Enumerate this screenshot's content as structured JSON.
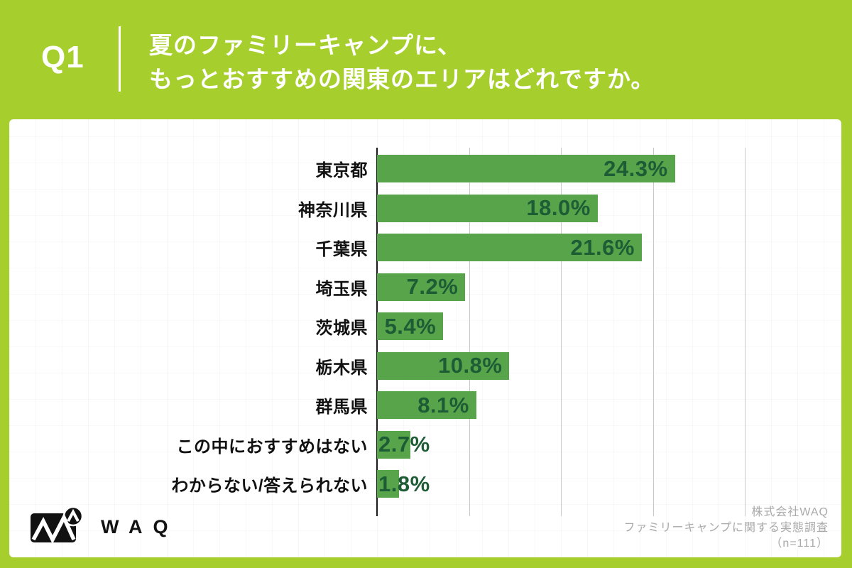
{
  "header": {
    "q_label": "Q1",
    "title_lines": [
      "夏のファミリーキャンプに、",
      "もっとおすすめの関東のエリアはどれですか。"
    ]
  },
  "chart_data": {
    "type": "bar",
    "orientation": "horizontal",
    "title": "夏のファミリーキャンプに、もっとおすすめの関東のエリアはどれですか。",
    "categories": [
      "東京都",
      "神奈川県",
      "千葉県",
      "埼玉県",
      "茨城県",
      "栃木県",
      "群馬県",
      "この中におすすめはない",
      "わからない/答えられない"
    ],
    "values": [
      24.3,
      18.0,
      21.6,
      7.2,
      5.4,
      10.8,
      8.1,
      2.7,
      1.8
    ],
    "value_labels": [
      "24.3%",
      "18.0%",
      "21.6%",
      "7.2%",
      "5.4%",
      "10.8%",
      "8.1%",
      "2.7%",
      "1.8%"
    ],
    "unit": "%",
    "xlim": [
      0,
      30
    ],
    "gridlines_pct": [
      7.5,
      15,
      22.5,
      30
    ],
    "grid": "vertical-only",
    "legend": "none"
  },
  "footer": {
    "lines": [
      "株式会社WAQ",
      "ファミリーキャンプに関する実態調査",
      "（n=111）"
    ]
  },
  "logo": {
    "text": "WAQ"
  },
  "colors": {
    "background_green": "#a6cf2d",
    "bar_green": "#57a44b",
    "value_text_green": "#1d5c35",
    "gridline": "#c9c9c9",
    "axis": "#1a1a1a",
    "category_text": "#111111",
    "footer_text": "#a9a9a9",
    "card_bg": "#ffffff",
    "title_text": "#ffffff"
  }
}
